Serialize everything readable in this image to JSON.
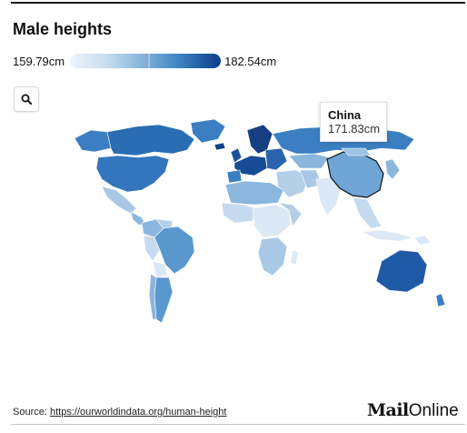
{
  "title": "Male heights",
  "legend": {
    "min_label": "159.79cm",
    "max_label": "182.54cm",
    "color_low": "#eef4fb",
    "color_high": "#0b3e8a"
  },
  "tooltip": {
    "country": "China",
    "value": "171.83cm"
  },
  "search": {
    "icon": "search-icon"
  },
  "source": {
    "prefix": "Source:",
    "link": "https://ourworldindata.org/human-height"
  },
  "brand": {
    "part1": "Mail",
    "part2": "Online"
  },
  "colors": {
    "lightest": "#dbe8f5",
    "light": "#b4cfe8",
    "mid": "#77aad7",
    "strong": "#3b7fc2",
    "darkest": "#123f86"
  }
}
